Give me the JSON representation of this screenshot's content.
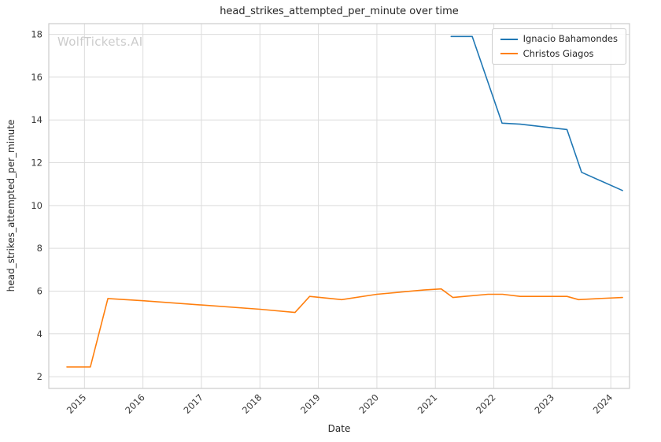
{
  "watermark": "WolfTickets.AI",
  "chart_data": {
    "type": "line",
    "title": "head_strikes_attempted_per_minute over time",
    "xlabel": "Date",
    "ylabel": "head_strikes_attempted_per_minute",
    "xlim": [
      2014.39,
      2024.32
    ],
    "ylim": [
      1.45,
      18.5
    ],
    "x_ticks": [
      2015,
      2016,
      2017,
      2018,
      2019,
      2020,
      2021,
      2022,
      2023,
      2024
    ],
    "y_ticks": [
      2,
      4,
      6,
      8,
      10,
      12,
      14,
      16,
      18
    ],
    "grid": true,
    "legend_position": "upper right",
    "colors": {
      "grid": "#dcdcdc",
      "border": "#cccccc",
      "text": "#3a3a3a",
      "background": "#ffffff"
    },
    "series": [
      {
        "name": "Ignacio Bahamondes",
        "color": "#1f77b4",
        "x": [
          2021.27,
          2021.63,
          2022.14,
          2022.45,
          2023.25,
          2023.5,
          2024.2
        ],
        "y": [
          17.9,
          17.9,
          13.85,
          13.8,
          13.55,
          11.55,
          10.7
        ]
      },
      {
        "name": "Christos Giagos",
        "color": "#ff7f0e",
        "x": [
          2014.7,
          2015.1,
          2015.4,
          2016.0,
          2017.0,
          2018.0,
          2018.6,
          2018.85,
          2019.4,
          2020.0,
          2020.8,
          2021.1,
          2021.3,
          2021.5,
          2021.9,
          2022.15,
          2022.45,
          2023.25,
          2023.45,
          2023.8,
          2024.2
        ],
        "y": [
          2.45,
          2.45,
          5.65,
          5.55,
          5.35,
          5.15,
          5.0,
          5.75,
          5.6,
          5.85,
          6.05,
          6.1,
          5.7,
          5.75,
          5.85,
          5.85,
          5.75,
          5.75,
          5.6,
          5.65,
          5.7
        ]
      }
    ]
  }
}
